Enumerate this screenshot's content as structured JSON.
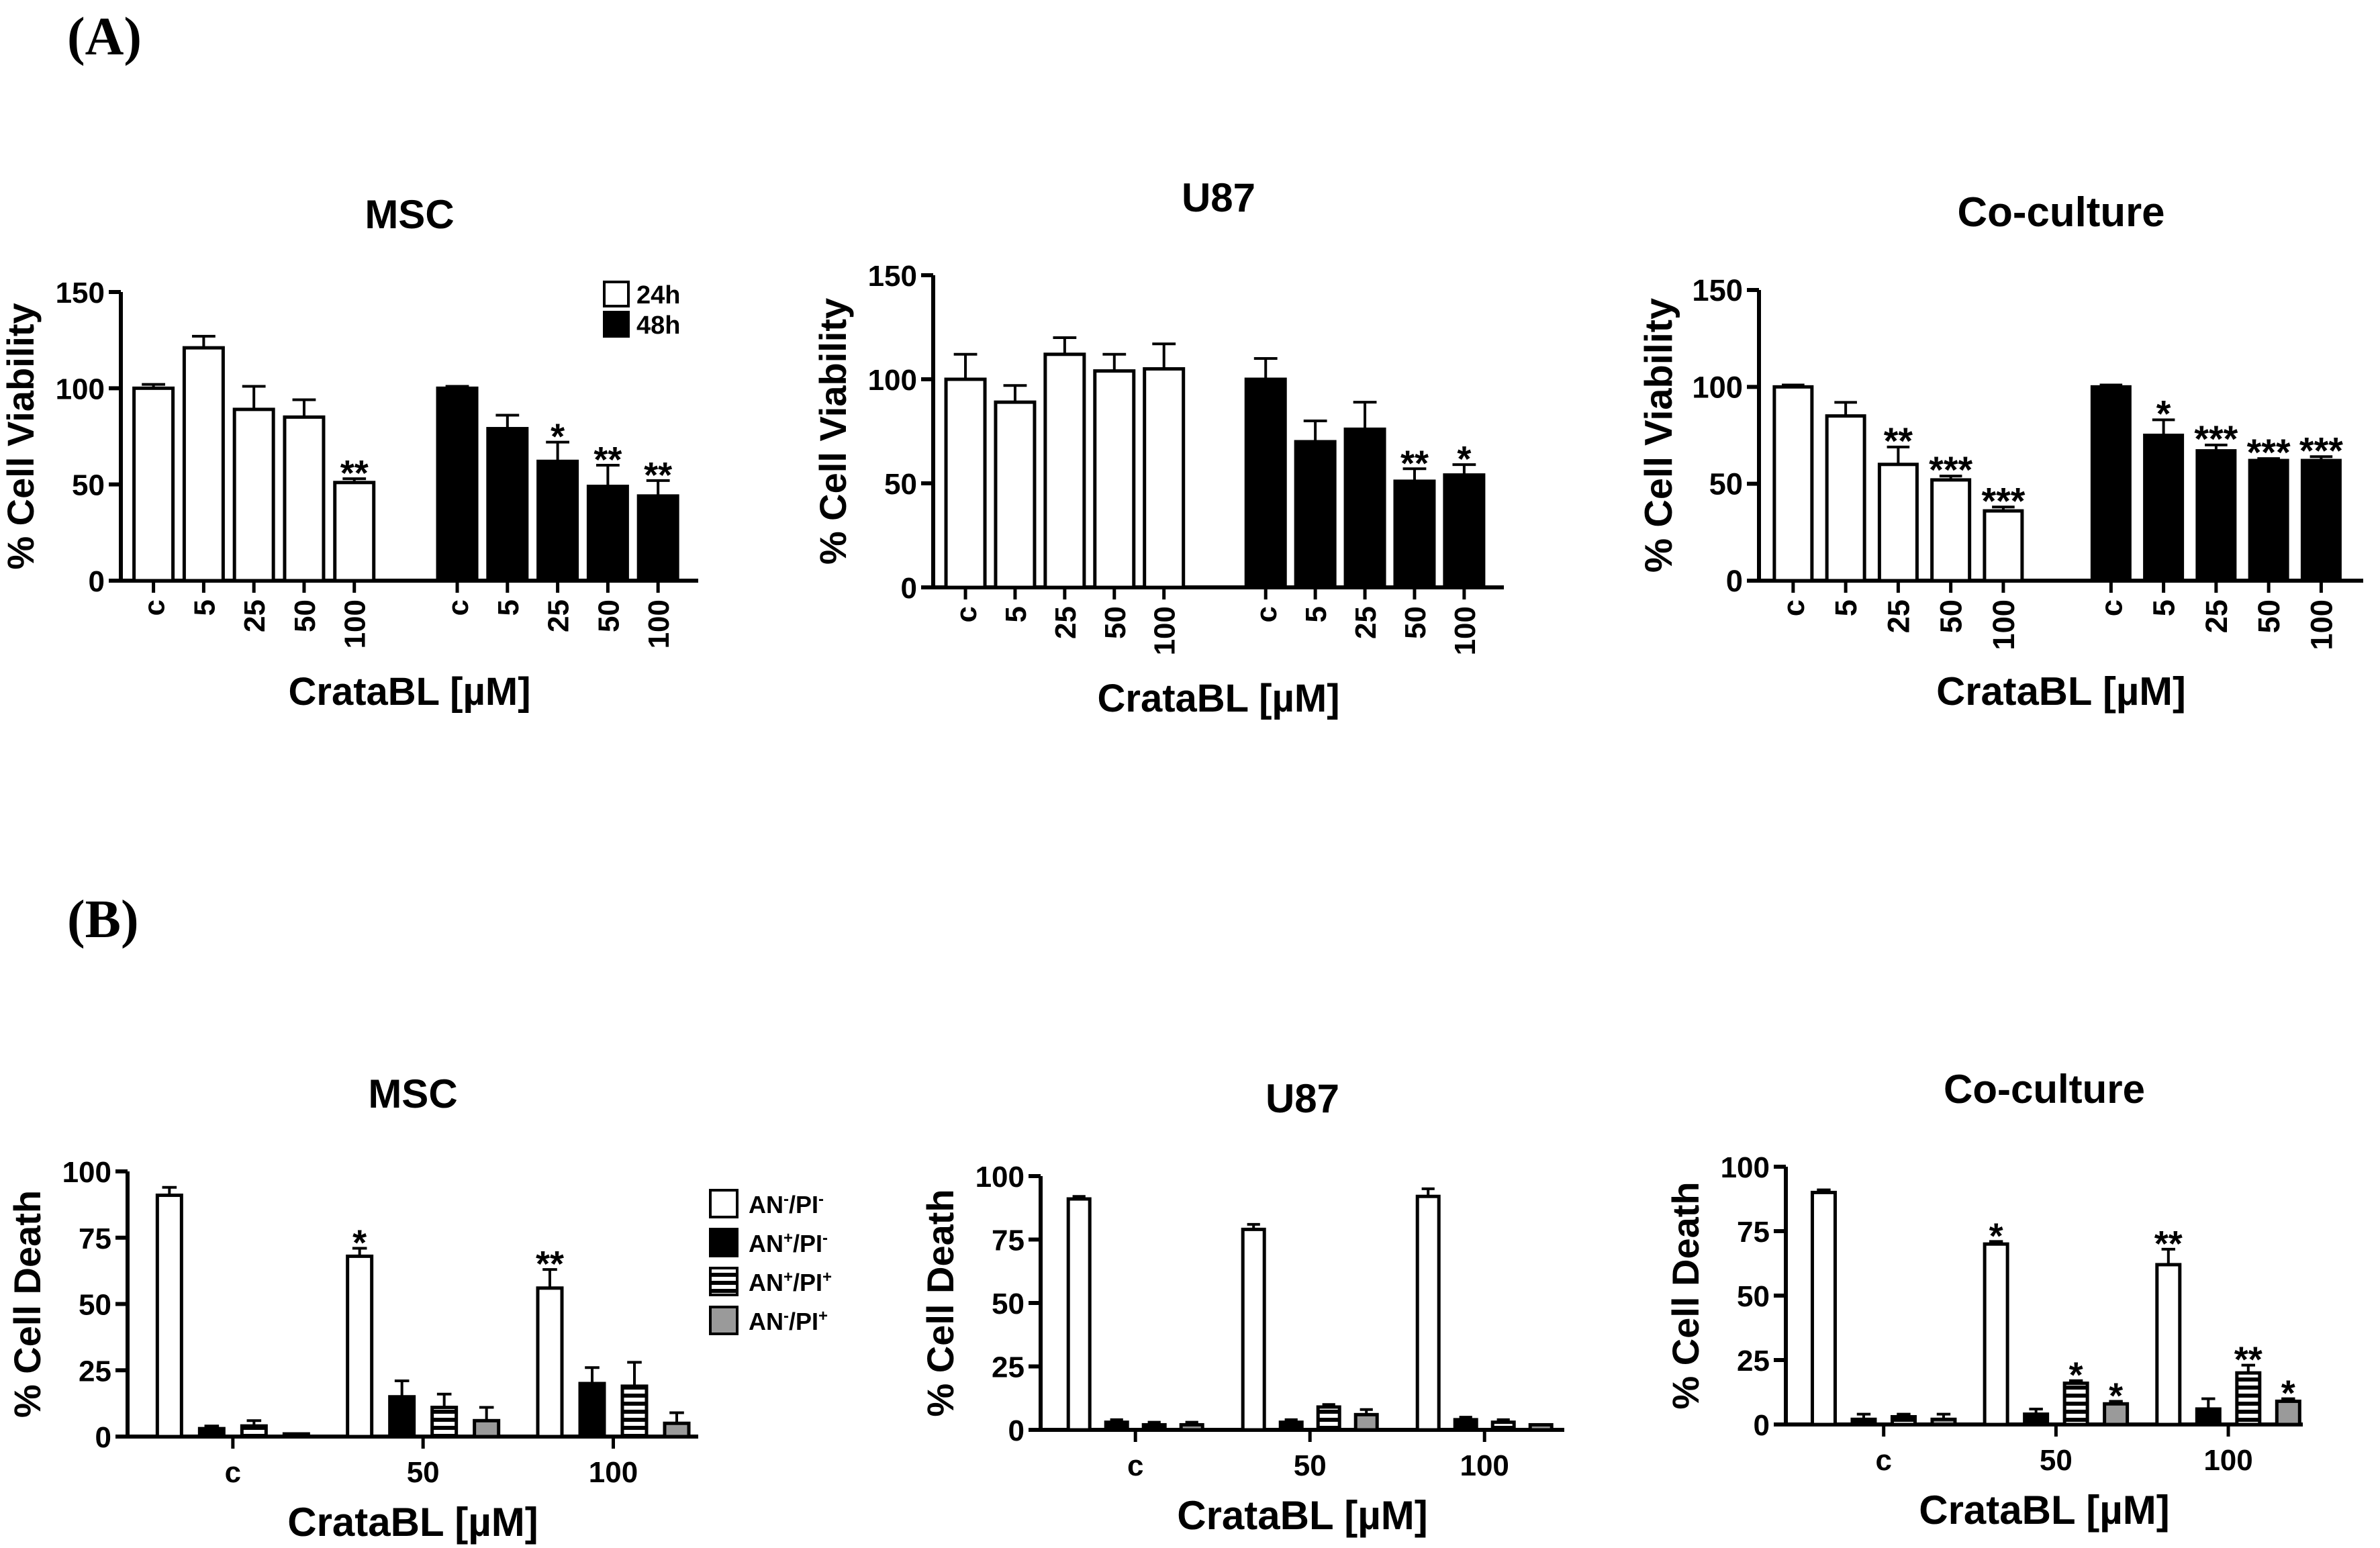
{
  "panels": [
    {
      "label": "(A)"
    },
    {
      "label": "(B)"
    }
  ],
  "chart_data": [
    {
      "type": "bar",
      "title": "MSC",
      "ylabel": "% Cell Viability",
      "xlabel": "CrataBL [µM]",
      "ylim": [
        0,
        150
      ],
      "yticks": [
        0,
        50,
        100,
        150
      ],
      "layout_kind": "sequential",
      "groups": [
        {
          "name": "24h",
          "categories": [
            "c",
            "5",
            "25",
            "50",
            "100"
          ],
          "values": [
            100,
            121,
            89,
            85,
            51
          ],
          "errors": [
            2,
            6,
            12,
            9,
            2
          ],
          "signif": [
            "",
            "",
            "",
            "",
            "**"
          ]
        },
        {
          "name": "48h",
          "categories": [
            "c",
            "5",
            "25",
            "50",
            "100"
          ],
          "values": [
            100,
            79,
            62,
            49,
            44
          ],
          "errors": [
            1,
            7,
            10,
            11,
            8
          ],
          "signif": [
            "",
            "",
            "*",
            "**",
            "**"
          ]
        }
      ],
      "legend": [
        {
          "label": "24h",
          "fill": "#ffffff"
        },
        {
          "label": "48h",
          "fill": "#000000"
        }
      ]
    },
    {
      "type": "bar",
      "title": "U87",
      "ylabel": "% Cell Viability",
      "xlabel": "CrataBL [µM]",
      "ylim": [
        0,
        150
      ],
      "yticks": [
        0,
        50,
        100,
        150
      ],
      "layout_kind": "sequential",
      "groups": [
        {
          "name": "24h",
          "categories": [
            "c",
            "5",
            "25",
            "50",
            "100"
          ],
          "values": [
            100,
            89,
            112,
            104,
            105
          ],
          "errors": [
            12,
            8,
            8,
            8,
            12
          ],
          "signif": [
            "",
            "",
            "",
            "",
            ""
          ]
        },
        {
          "name": "48h",
          "categories": [
            "c",
            "5",
            "25",
            "50",
            "100"
          ],
          "values": [
            100,
            70,
            76,
            51,
            54
          ],
          "errors": [
            10,
            10,
            13,
            6,
            5
          ],
          "signif": [
            "",
            "",
            "",
            "**",
            "*"
          ]
        }
      ]
    },
    {
      "type": "bar",
      "title": "Co-culture",
      "ylabel": "% Cell Viability",
      "xlabel": "CrataBL [µM]",
      "ylim": [
        0,
        150
      ],
      "yticks": [
        0,
        50,
        100,
        150
      ],
      "layout_kind": "sequential",
      "groups": [
        {
          "name": "24h",
          "categories": [
            "c",
            "5",
            "25",
            "50",
            "100"
          ],
          "values": [
            100,
            85,
            60,
            52,
            36
          ],
          "errors": [
            1,
            7,
            9,
            2,
            2
          ],
          "signif": [
            "",
            "",
            "**",
            "***",
            "***"
          ]
        },
        {
          "name": "48h",
          "categories": [
            "c",
            "5",
            "25",
            "50",
            "100"
          ],
          "values": [
            100,
            75,
            67,
            62,
            62
          ],
          "errors": [
            1,
            8,
            3,
            1,
            2
          ],
          "signif": [
            "",
            "*",
            "***",
            "***",
            "***"
          ]
        }
      ]
    },
    {
      "type": "bar",
      "title": "MSC",
      "ylabel": "% Cell Death",
      "xlabel": "CrataBL [µM]",
      "ylim": [
        0,
        100
      ],
      "yticks": [
        0,
        25,
        50,
        75,
        100
      ],
      "layout_kind": "grouped",
      "categories": [
        "c",
        "50",
        "100"
      ],
      "series": [
        {
          "name": "AN-/PI-",
          "fill": "#ffffff",
          "values": [
            91,
            68,
            56
          ],
          "errors": [
            3,
            3,
            7
          ],
          "signif": [
            "",
            "*",
            "**"
          ]
        },
        {
          "name": "AN+/PI-",
          "fill": "#000000",
          "values": [
            3,
            15,
            20
          ],
          "errors": [
            1,
            6,
            6
          ],
          "signif": [
            "",
            "",
            ""
          ]
        },
        {
          "name": "AN+/PI+",
          "fill": "hatch",
          "values": [
            4,
            11,
            19
          ],
          "errors": [
            2,
            5,
            9
          ],
          "signif": [
            "",
            "",
            ""
          ]
        },
        {
          "name": "AN-/PI+",
          "fill": "#9a9a9a",
          "values": [
            1,
            6,
            5
          ],
          "errors": [
            0,
            5,
            4
          ],
          "signif": [
            "",
            "",
            ""
          ]
        }
      ],
      "legend_entries": [
        {
          "base": "AN",
          "s1": "-",
          "mid": "/PI",
          "s2": "-"
        },
        {
          "base": "AN",
          "s1": "+",
          "mid": "/PI",
          "s2": "-"
        },
        {
          "base": "AN",
          "s1": "+",
          "mid": "/PI",
          "s2": "+"
        },
        {
          "base": "AN",
          "s1": "-",
          "mid": "/PI",
          "s2": "+"
        }
      ]
    },
    {
      "type": "bar",
      "title": "U87",
      "ylabel": "% Cell Death",
      "xlabel": "CrataBL [µM]",
      "ylim": [
        0,
        100
      ],
      "yticks": [
        0,
        25,
        50,
        75,
        100
      ],
      "layout_kind": "grouped",
      "categories": [
        "c",
        "50",
        "100"
      ],
      "series": [
        {
          "name": "AN-/PI-",
          "fill": "#ffffff",
          "values": [
            91,
            79,
            92
          ],
          "errors": [
            1,
            2,
            3
          ],
          "signif": [
            "",
            "",
            ""
          ]
        },
        {
          "name": "AN+/PI-",
          "fill": "#000000",
          "values": [
            3,
            3,
            4
          ],
          "errors": [
            1,
            1,
            1
          ],
          "signif": [
            "",
            "",
            ""
          ]
        },
        {
          "name": "AN+/PI+",
          "fill": "hatch",
          "values": [
            2,
            9,
            3
          ],
          "errors": [
            1,
            1,
            1
          ],
          "signif": [
            "",
            "",
            ""
          ]
        },
        {
          "name": "AN-/PI+",
          "fill": "#9a9a9a",
          "values": [
            2,
            6,
            2
          ],
          "errors": [
            1,
            2,
            0
          ],
          "signif": [
            "",
            "",
            ""
          ]
        }
      ]
    },
    {
      "type": "bar",
      "title": "Co-culture",
      "ylabel": "% Cell Death",
      "xlabel": "CrataBL [µM]",
      "ylim": [
        0,
        100
      ],
      "yticks": [
        0,
        25,
        50,
        75,
        100
      ],
      "layout_kind": "grouped",
      "categories": [
        "c",
        "50",
        "100"
      ],
      "series": [
        {
          "name": "AN-/PI-",
          "fill": "#ffffff",
          "values": [
            90,
            70,
            62
          ],
          "errors": [
            1,
            1,
            6
          ],
          "signif": [
            "",
            "*",
            "**"
          ]
        },
        {
          "name": "AN+/PI-",
          "fill": "#000000",
          "values": [
            2,
            4,
            6
          ],
          "errors": [
            2,
            2,
            4
          ],
          "signif": [
            "",
            "",
            ""
          ]
        },
        {
          "name": "AN+/PI+",
          "fill": "hatch",
          "values": [
            3,
            16,
            20
          ],
          "errors": [
            1,
            1,
            3
          ],
          "signif": [
            "",
            "*",
            "**"
          ]
        },
        {
          "name": "AN-/PI+",
          "fill": "#9a9a9a",
          "values": [
            2,
            8,
            9
          ],
          "errors": [
            2,
            1,
            1
          ],
          "signif": [
            "",
            "*",
            "*"
          ]
        }
      ]
    }
  ]
}
